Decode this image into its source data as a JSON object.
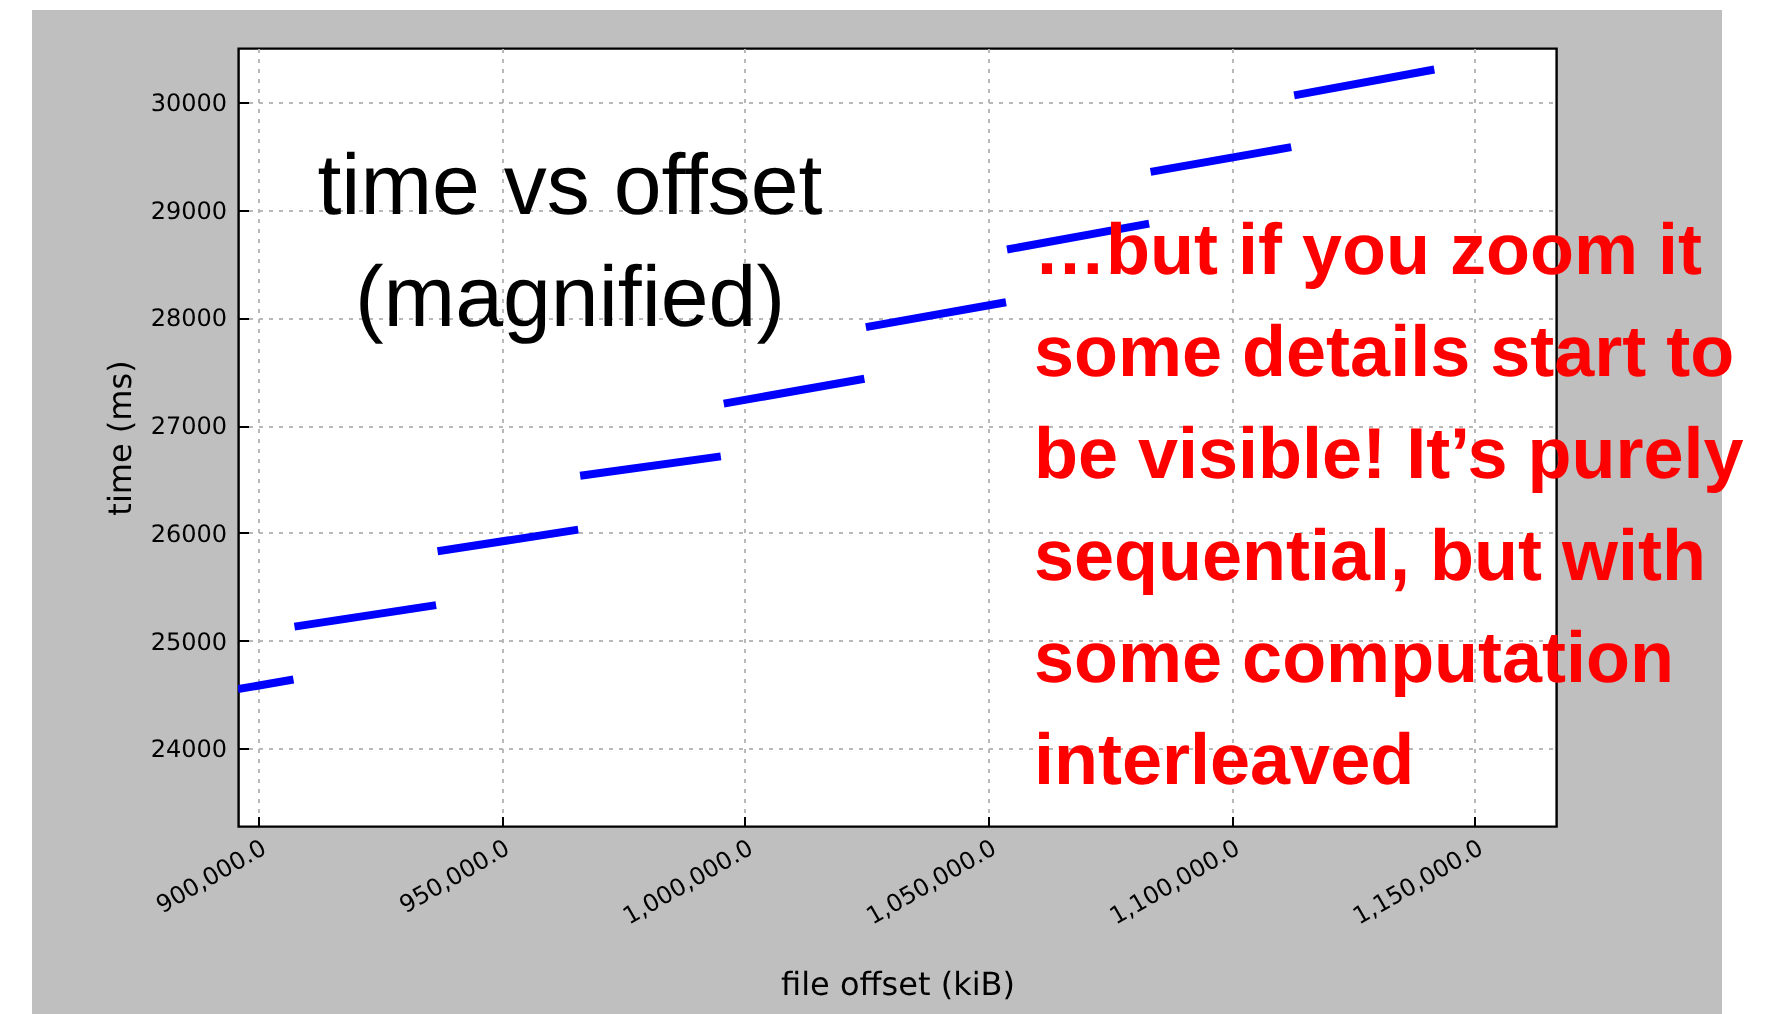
{
  "chart_data": {
    "type": "line",
    "title": "time vs offset\n(magnified)",
    "xlabel": "file offset (kiB)",
    "ylabel": "time (ms)",
    "annotations": [
      "…but if you zoom it\nsome details start to\nbe visible! It’s purely\nsequential, but with\nsome computation\ninterleaved"
    ],
    "x": [
      895900,
      907300,
      907400,
      907500,
      936600,
      936700,
      936900,
      965800,
      966000,
      966200,
      995100,
      995400,
      995700,
      1024600,
      1024700,
      1024900,
      1053700,
      1053800,
      1053900,
      1083100,
      1083200,
      1083400,
      1112300,
      1112600,
      1112900,
      1141700
    ],
    "series": [
      {
        "color": "#0000ff",
        "values": [
          24550,
          24640,
          null,
          25130,
          25330,
          null,
          25830,
          26030,
          null,
          26530,
          26710,
          null,
          27200,
          27430,
          null,
          27910,
          28140,
          null,
          28630,
          28870,
          null,
          29350,
          29580,
          null,
          30060,
          30300
        ]
      }
    ],
    "xlim": [
      895900,
      1166700
    ],
    "ylim": [
      23280,
      30500
    ],
    "xticks": [
      {
        "value": 900000,
        "label": "900,000.0"
      },
      {
        "value": 950000,
        "label": "950,000.0"
      },
      {
        "value": 1000000,
        "label": "1,000,000.0"
      },
      {
        "value": 1050000,
        "label": "1,050,000.0"
      },
      {
        "value": 1100000,
        "label": "1,100,000.0"
      },
      {
        "value": 1150000,
        "label": "1,150,000.0"
      }
    ],
    "yticks": [
      24000,
      25000,
      26000,
      27000,
      28000,
      29000,
      30000
    ],
    "grid": true,
    "line_style": "solid"
  }
}
